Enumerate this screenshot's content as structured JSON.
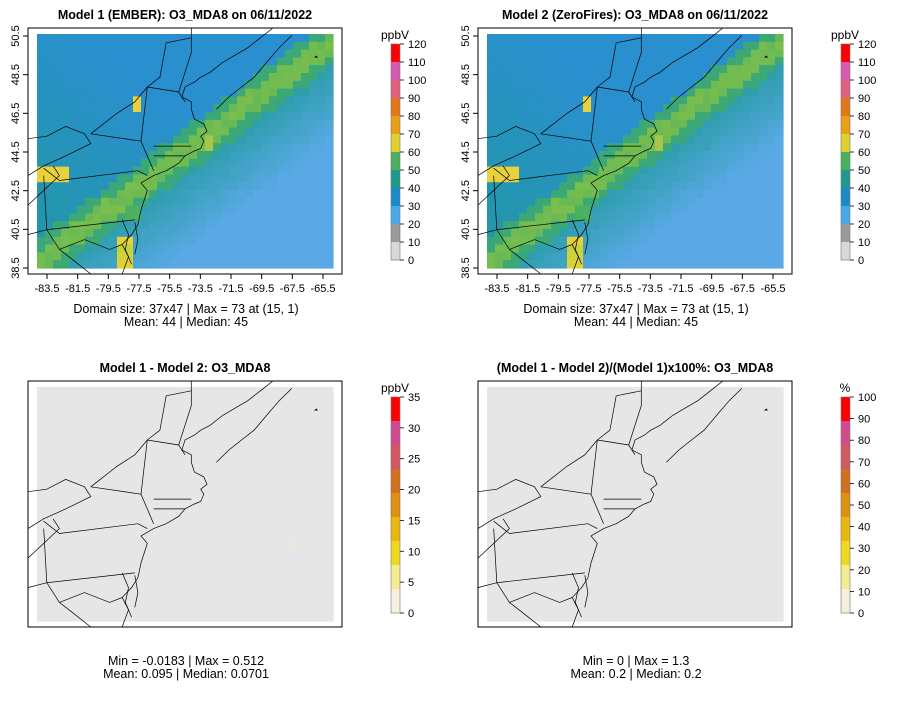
{
  "panels": [
    {
      "id": "m1",
      "title": "Model 1 (EMBER): O3_MDA8 on 06/11/2022",
      "stat_line1": "Domain size: 37x47 | Max = 73 at (15, 1)",
      "stat_line2": "Mean: 44 |  Median: 45",
      "legend_unit": "ppbV",
      "legend_ticks": [
        "0",
        "10",
        "20",
        "30",
        "40",
        "50",
        "60",
        "70",
        "80",
        "90",
        "100",
        "110",
        "120"
      ],
      "has_axes": true
    },
    {
      "id": "m2",
      "title": "Model 2 (ZeroFires): O3_MDA8 on 06/11/2022",
      "stat_line1": "Domain size: 37x47 | Max = 73 at (15, 1)",
      "stat_line2": "Mean: 44 |  Median: 45",
      "legend_unit": "ppbV",
      "legend_ticks": [
        "0",
        "10",
        "20",
        "30",
        "40",
        "50",
        "60",
        "70",
        "80",
        "90",
        "100",
        "110",
        "120"
      ],
      "has_axes": true
    },
    {
      "id": "diff",
      "title": "Model 1 - Model 2: O3_MDA8",
      "stat_line1": "Min = -0.0183 | Max = 0.512",
      "stat_line2": "Mean: 0.095 |  Median: 0.0701",
      "legend_unit": "ppbV",
      "legend_ticks": [
        "0",
        "5",
        "10",
        "15",
        "20",
        "25",
        "30",
        "35"
      ],
      "has_axes": false
    },
    {
      "id": "pct",
      "title": "(Model 1 - Model 2)/(Model 1)x100%: O3_MDA8",
      "stat_line1": "Min = 0 | Max = 1.3",
      "stat_line2": "Mean: 0.2 |  Median: 0.2",
      "legend_unit": "%",
      "legend_ticks": [
        "0",
        "10",
        "20",
        "30",
        "40",
        "50",
        "60",
        "70",
        "80",
        "90",
        "100"
      ],
      "has_axes": false
    }
  ],
  "axes": {
    "lon_ticks": [
      "-83.5",
      "-81.5",
      "-79.5",
      "-77.5",
      "-75.5",
      "-73.5",
      "-71.5",
      "-69.5",
      "-67.5",
      "-65.5"
    ],
    "lat_ticks": [
      "38.5",
      "40.5",
      "42.5",
      "44.5",
      "46.5",
      "48.5",
      "50.5"
    ]
  },
  "colors": {
    "ocean": "#5aa9e6",
    "land_low": "#2a8fcf",
    "mid": "#1f9a9a",
    "green": "#4bb062",
    "yellow": "#e8d13a",
    "blank": "#e6e6e6"
  }
}
